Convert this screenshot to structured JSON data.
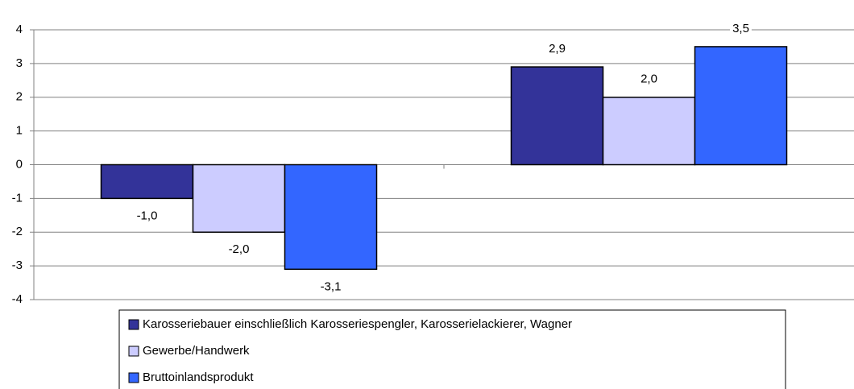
{
  "chart_data": {
    "type": "bar",
    "categories": [
      null,
      null
    ],
    "series": [
      {
        "name": "Karosseriebauer einschließlich Karosseriespengler, Karosserielackierer, Wagner",
        "color": "#333399",
        "values": [
          -1.0,
          2.9
        ],
        "value_labels": [
          "-1,0",
          "2,9"
        ]
      },
      {
        "name": "Gewerbe/Handwerk",
        "color": "#ccccff",
        "values": [
          -2.0,
          2.0
        ],
        "value_labels": [
          "-2,0",
          "2,0"
        ]
      },
      {
        "name": "Bruttoinlandsprodukt",
        "color": "#3366ff",
        "values": [
          -3.1,
          3.5
        ],
        "value_labels": [
          "-3,1",
          "3,5"
        ]
      }
    ],
    "ylim": [
      -4,
      4
    ],
    "yticks": [
      -4,
      -3,
      -2,
      -1,
      0,
      1,
      2,
      3,
      4
    ],
    "grid": true,
    "legend": "bottom"
  }
}
